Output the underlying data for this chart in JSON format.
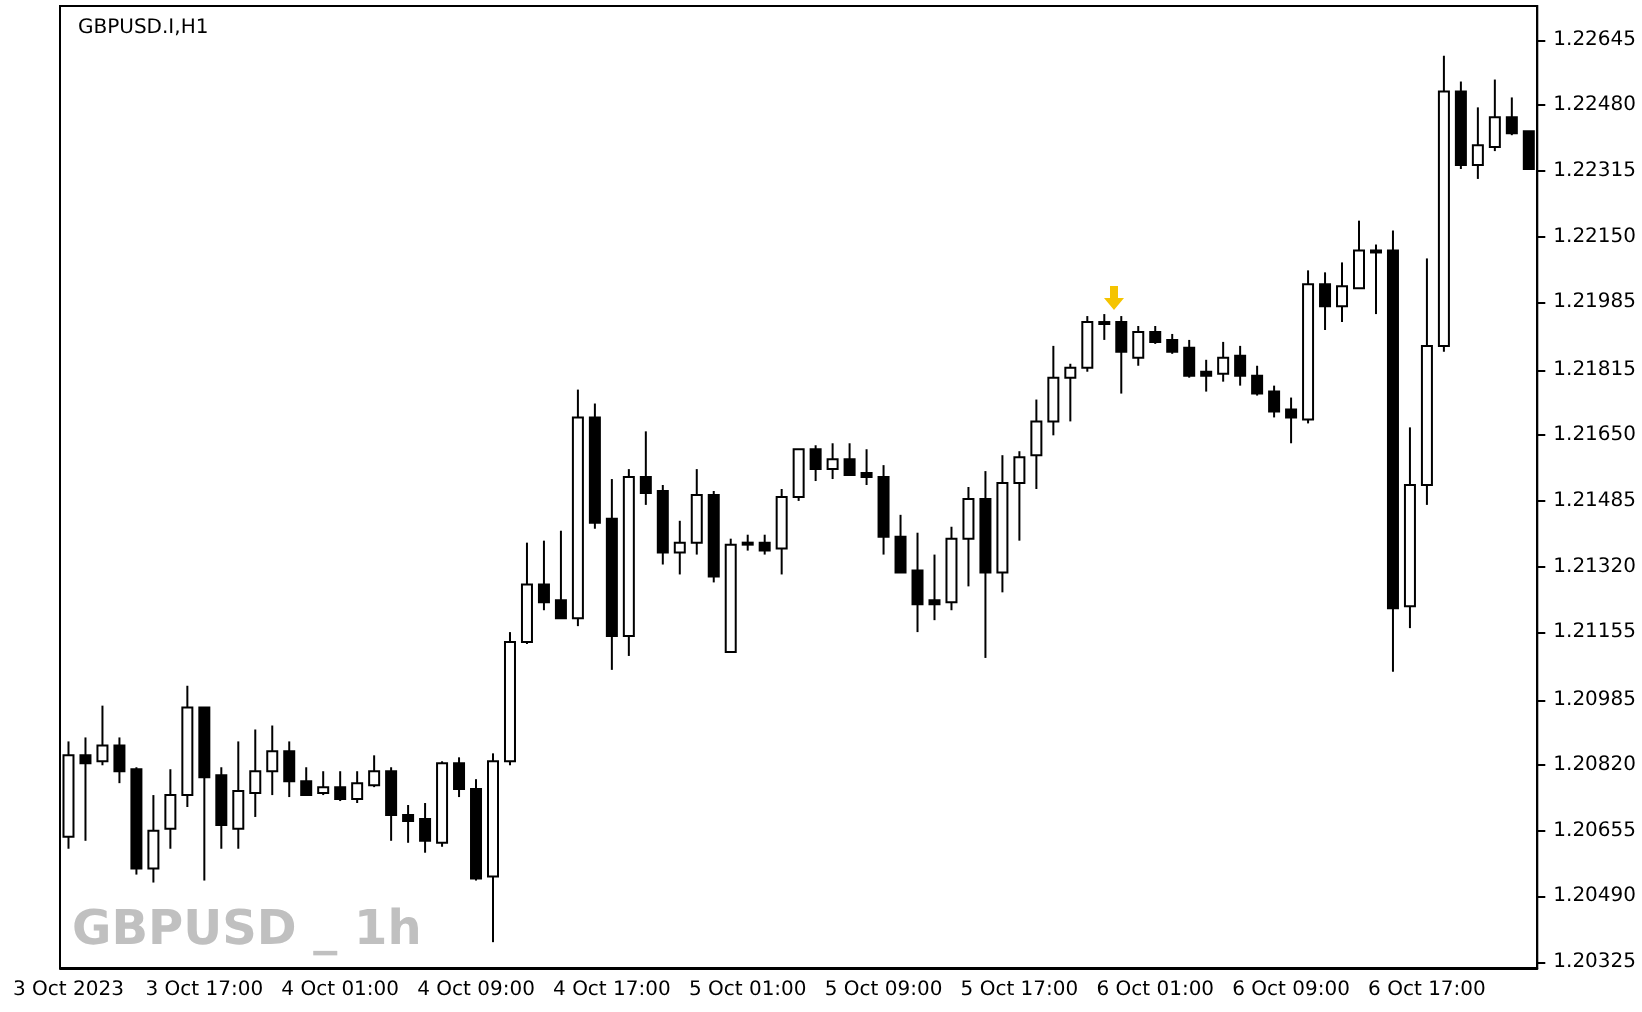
{
  "chart_data": {
    "type": "candlestick",
    "title": "GBPUSD.I,H1",
    "annotations": [
      "GBPUSD _ 1h"
    ],
    "categories": [
      "3 Oct 2023",
      null,
      null,
      null,
      null,
      null,
      null,
      null,
      "3 Oct 17:00",
      null,
      null,
      null,
      null,
      null,
      null,
      null,
      "4 Oct 01:00",
      null,
      null,
      null,
      null,
      null,
      null,
      null,
      "4 Oct 09:00",
      null,
      null,
      null,
      null,
      null,
      null,
      null,
      "4 Oct 17:00",
      null,
      null,
      null,
      null,
      null,
      null,
      null,
      "5 Oct 01:00",
      null,
      null,
      null,
      null,
      null,
      null,
      null,
      "5 Oct 09:00",
      null,
      null,
      null,
      null,
      null,
      null,
      null,
      "5 Oct 17:00",
      null,
      null,
      null,
      null,
      null,
      null,
      null,
      "6 Oct 01:00",
      null,
      null,
      null,
      null,
      null,
      null,
      null,
      "6 Oct 09:00",
      null,
      null,
      null,
      null,
      null,
      null,
      null,
      "6 Oct 17:00",
      null,
      null,
      null,
      null,
      null,
      null
    ],
    "ohlc": [
      [
        1.2064,
        1.2088,
        1.2061,
        1.20845
      ],
      [
        1.20845,
        1.2089,
        1.2063,
        1.20825
      ],
      [
        1.2083,
        1.2097,
        1.2082,
        1.2087
      ],
      [
        1.2087,
        1.2089,
        1.20775,
        1.20805
      ],
      [
        1.2081,
        1.20815,
        1.20545,
        1.2056
      ],
      [
        1.2056,
        1.20745,
        1.20525,
        1.20655
      ],
      [
        1.2066,
        1.2081,
        1.2061,
        1.20745
      ],
      [
        1.20745,
        1.2102,
        1.20715,
        1.20965
      ],
      [
        1.20965,
        1.20965,
        1.2053,
        1.2079
      ],
      [
        1.20795,
        1.20815,
        1.2061,
        1.2067
      ],
      [
        1.2066,
        1.2088,
        1.2061,
        1.20755
      ],
      [
        1.2075,
        1.2091,
        1.2069,
        1.20805
      ],
      [
        1.20805,
        1.2092,
        1.20745,
        1.20855
      ],
      [
        1.20855,
        1.2088,
        1.2074,
        1.2078
      ],
      [
        1.2078,
        1.20815,
        1.20745,
        1.20745
      ],
      [
        1.2075,
        1.20805,
        1.20745,
        1.20765
      ],
      [
        1.20765,
        1.20805,
        1.2073,
        1.20735
      ],
      [
        1.20735,
        1.20805,
        1.20725,
        1.20775
      ],
      [
        1.2077,
        1.20845,
        1.20765,
        1.20805
      ],
      [
        1.20805,
        1.20815,
        1.2063,
        1.20695
      ],
      [
        1.20695,
        1.2072,
        1.20625,
        1.2068
      ],
      [
        1.20685,
        1.20725,
        1.206,
        1.2063
      ],
      [
        1.20625,
        1.2083,
        1.20615,
        1.20825
      ],
      [
        1.20825,
        1.2084,
        1.2074,
        1.2076
      ],
      [
        1.2076,
        1.20785,
        1.2053,
        1.20535
      ],
      [
        1.2054,
        1.2085,
        1.20375,
        1.2083
      ],
      [
        1.2083,
        1.21155,
        1.2082,
        1.2113
      ],
      [
        1.2113,
        1.2138,
        1.21125,
        1.21275
      ],
      [
        1.21275,
        1.21385,
        1.2121,
        1.2123
      ],
      [
        1.21235,
        1.2141,
        1.2119,
        1.2119
      ],
      [
        1.2119,
        1.21765,
        1.2117,
        1.21695
      ],
      [
        1.21695,
        1.2173,
        1.21415,
        1.2143
      ],
      [
        1.2144,
        1.2154,
        1.2106,
        1.21145
      ],
      [
        1.21145,
        1.21565,
        1.21095,
        1.21545
      ],
      [
        1.21545,
        1.2166,
        1.21475,
        1.21505
      ],
      [
        1.2151,
        1.21525,
        1.21325,
        1.21355
      ],
      [
        1.21355,
        1.21435,
        1.213,
        1.2138
      ],
      [
        1.2138,
        1.21565,
        1.2135,
        1.215
      ],
      [
        1.215,
        1.2151,
        1.2128,
        1.21295
      ],
      [
        1.21105,
        1.2139,
        1.21105,
        1.21375
      ],
      [
        1.2138,
        1.214,
        1.2136,
        1.21375
      ],
      [
        1.2138,
        1.214,
        1.2135,
        1.2136
      ],
      [
        1.21365,
        1.21515,
        1.213,
        1.21495
      ],
      [
        1.21495,
        1.21615,
        1.21485,
        1.21615
      ],
      [
        1.21615,
        1.21625,
        1.21535,
        1.21565
      ],
      [
        1.21565,
        1.2163,
        1.2154,
        1.2159
      ],
      [
        1.2159,
        1.2163,
        1.2155,
        1.2155
      ],
      [
        1.21555,
        1.21615,
        1.21525,
        1.21545
      ],
      [
        1.21545,
        1.21575,
        1.2135,
        1.21395
      ],
      [
        1.21395,
        1.2145,
        1.21305,
        1.21305
      ],
      [
        1.2131,
        1.21405,
        1.21155,
        1.21225
      ],
      [
        1.21235,
        1.2135,
        1.21185,
        1.21225
      ],
      [
        1.2123,
        1.2142,
        1.2121,
        1.2139
      ],
      [
        1.2139,
        1.2152,
        1.2127,
        1.2149
      ],
      [
        1.2149,
        1.2156,
        1.2109,
        1.21305
      ],
      [
        1.21305,
        1.216,
        1.21255,
        1.2153
      ],
      [
        1.2153,
        1.2161,
        1.21385,
        1.21595
      ],
      [
        1.216,
        1.2174,
        1.21515,
        1.21685
      ],
      [
        1.21685,
        1.21875,
        1.2165,
        1.21795
      ],
      [
        1.21795,
        1.2183,
        1.21685,
        1.2182
      ],
      [
        1.2182,
        1.2195,
        1.2181,
        1.21935
      ],
      [
        1.21935,
        1.21955,
        1.2189,
        1.2193
      ],
      [
        1.21935,
        1.2195,
        1.21755,
        1.2186
      ],
      [
        1.21845,
        1.21925,
        1.21825,
        1.2191
      ],
      [
        1.2191,
        1.21925,
        1.2188,
        1.21885
      ],
      [
        1.2189,
        1.21905,
        1.21855,
        1.2186
      ],
      [
        1.2187,
        1.2189,
        1.21795,
        1.218
      ],
      [
        1.2181,
        1.2184,
        1.2176,
        1.218
      ],
      [
        1.21805,
        1.21885,
        1.21785,
        1.21845
      ],
      [
        1.2185,
        1.21875,
        1.21775,
        1.218
      ],
      [
        1.218,
        1.21825,
        1.2175,
        1.21755
      ],
      [
        1.2176,
        1.21775,
        1.21695,
        1.2171
      ],
      [
        1.21715,
        1.21745,
        1.2163,
        1.21695
      ],
      [
        1.2169,
        1.22065,
        1.2168,
        1.2203
      ],
      [
        1.2203,
        1.2206,
        1.21915,
        1.21975
      ],
      [
        1.21975,
        1.22085,
        1.21935,
        1.22025
      ],
      [
        1.2202,
        1.2219,
        1.2202,
        1.22115
      ],
      [
        1.22115,
        1.2213,
        1.21955,
        1.22115
      ],
      [
        1.22115,
        1.22165,
        1.21055,
        1.21215
      ],
      [
        1.2122,
        1.2167,
        1.21165,
        1.21525
      ],
      [
        1.21525,
        1.22095,
        1.21475,
        1.21875
      ],
      [
        1.21875,
        1.22605,
        1.2186,
        1.22515
      ],
      [
        1.22515,
        1.2254,
        1.2232,
        1.2233
      ],
      [
        1.2233,
        1.22475,
        1.22295,
        1.2238
      ],
      [
        1.22375,
        1.22545,
        1.22365,
        1.2245
      ],
      [
        1.2245,
        1.225,
        1.22405,
        1.2241
      ],
      [
        1.22415,
        1.22415,
        1.2232,
        1.2232
      ]
    ],
    "ylim": [
      1.2031,
      1.2273
    ],
    "yticks": [
      1.22645,
      {
        "value": 1.2248,
        "label": "1.22480"
      },
      1.22315,
      {
        "value": 1.2215,
        "label": "1.22150"
      },
      1.21985,
      1.21815,
      {
        "value": 1.2165,
        "label": "1.21650"
      },
      1.21485,
      {
        "value": 1.2132,
        "label": "1.21320"
      },
      1.21155,
      1.20985,
      {
        "value": 1.2082,
        "label": "1.20820"
      },
      1.20655,
      {
        "value": 1.2049,
        "label": "1.20490"
      },
      1.20325
    ],
    "grid": false
  }
}
